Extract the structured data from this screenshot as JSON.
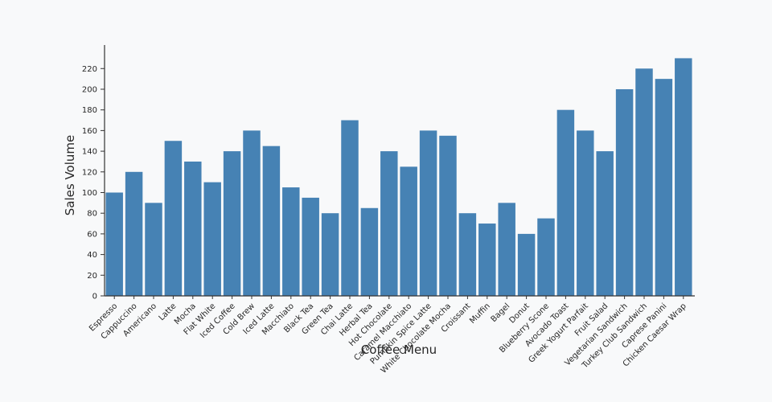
{
  "chart_data": {
    "type": "bar",
    "title": "",
    "xlabel": "Coffee Menu",
    "ylabel": "Sales Volume",
    "categories": [
      "Espresso",
      "Cappuccino",
      "Americano",
      "Latte",
      "Mocha",
      "Flat White",
      "Iced Coffee",
      "Cold Brew",
      "Iced Latte",
      "Macchiato",
      "Black Tea",
      "Green Tea",
      "Chai Latte",
      "Herbal Tea",
      "Hot Chocolate",
      "Caramel Macchiato",
      "Pumpkin Spice Latte",
      "White Chocolate Mocha",
      "Croissant",
      "Muffin",
      "Bagel",
      "Donut",
      "Blueberry Scone",
      "Avocado Toast",
      "Greek Yogurt Parfait",
      "Fruit Salad",
      "Vegetarian Sandwich",
      "Turkey Club Sandwich",
      "Caprese Panini",
      "Chicken Caesar Wrap"
    ],
    "values": [
      100,
      120,
      90,
      150,
      130,
      110,
      140,
      160,
      145,
      105,
      95,
      80,
      170,
      85,
      140,
      125,
      160,
      155,
      80,
      70,
      90,
      60,
      75,
      180,
      160,
      140,
      200,
      220,
      210,
      230
    ],
    "ylim": [
      0,
      235
    ],
    "yticks": [
      0,
      20,
      40,
      60,
      80,
      100,
      120,
      140,
      160,
      180,
      200,
      220
    ],
    "grid": false,
    "legend": "none",
    "colors": {
      "bar": "#4682b4",
      "background": "#f8f9fa",
      "axis": "#333333",
      "text": "#262626"
    }
  }
}
